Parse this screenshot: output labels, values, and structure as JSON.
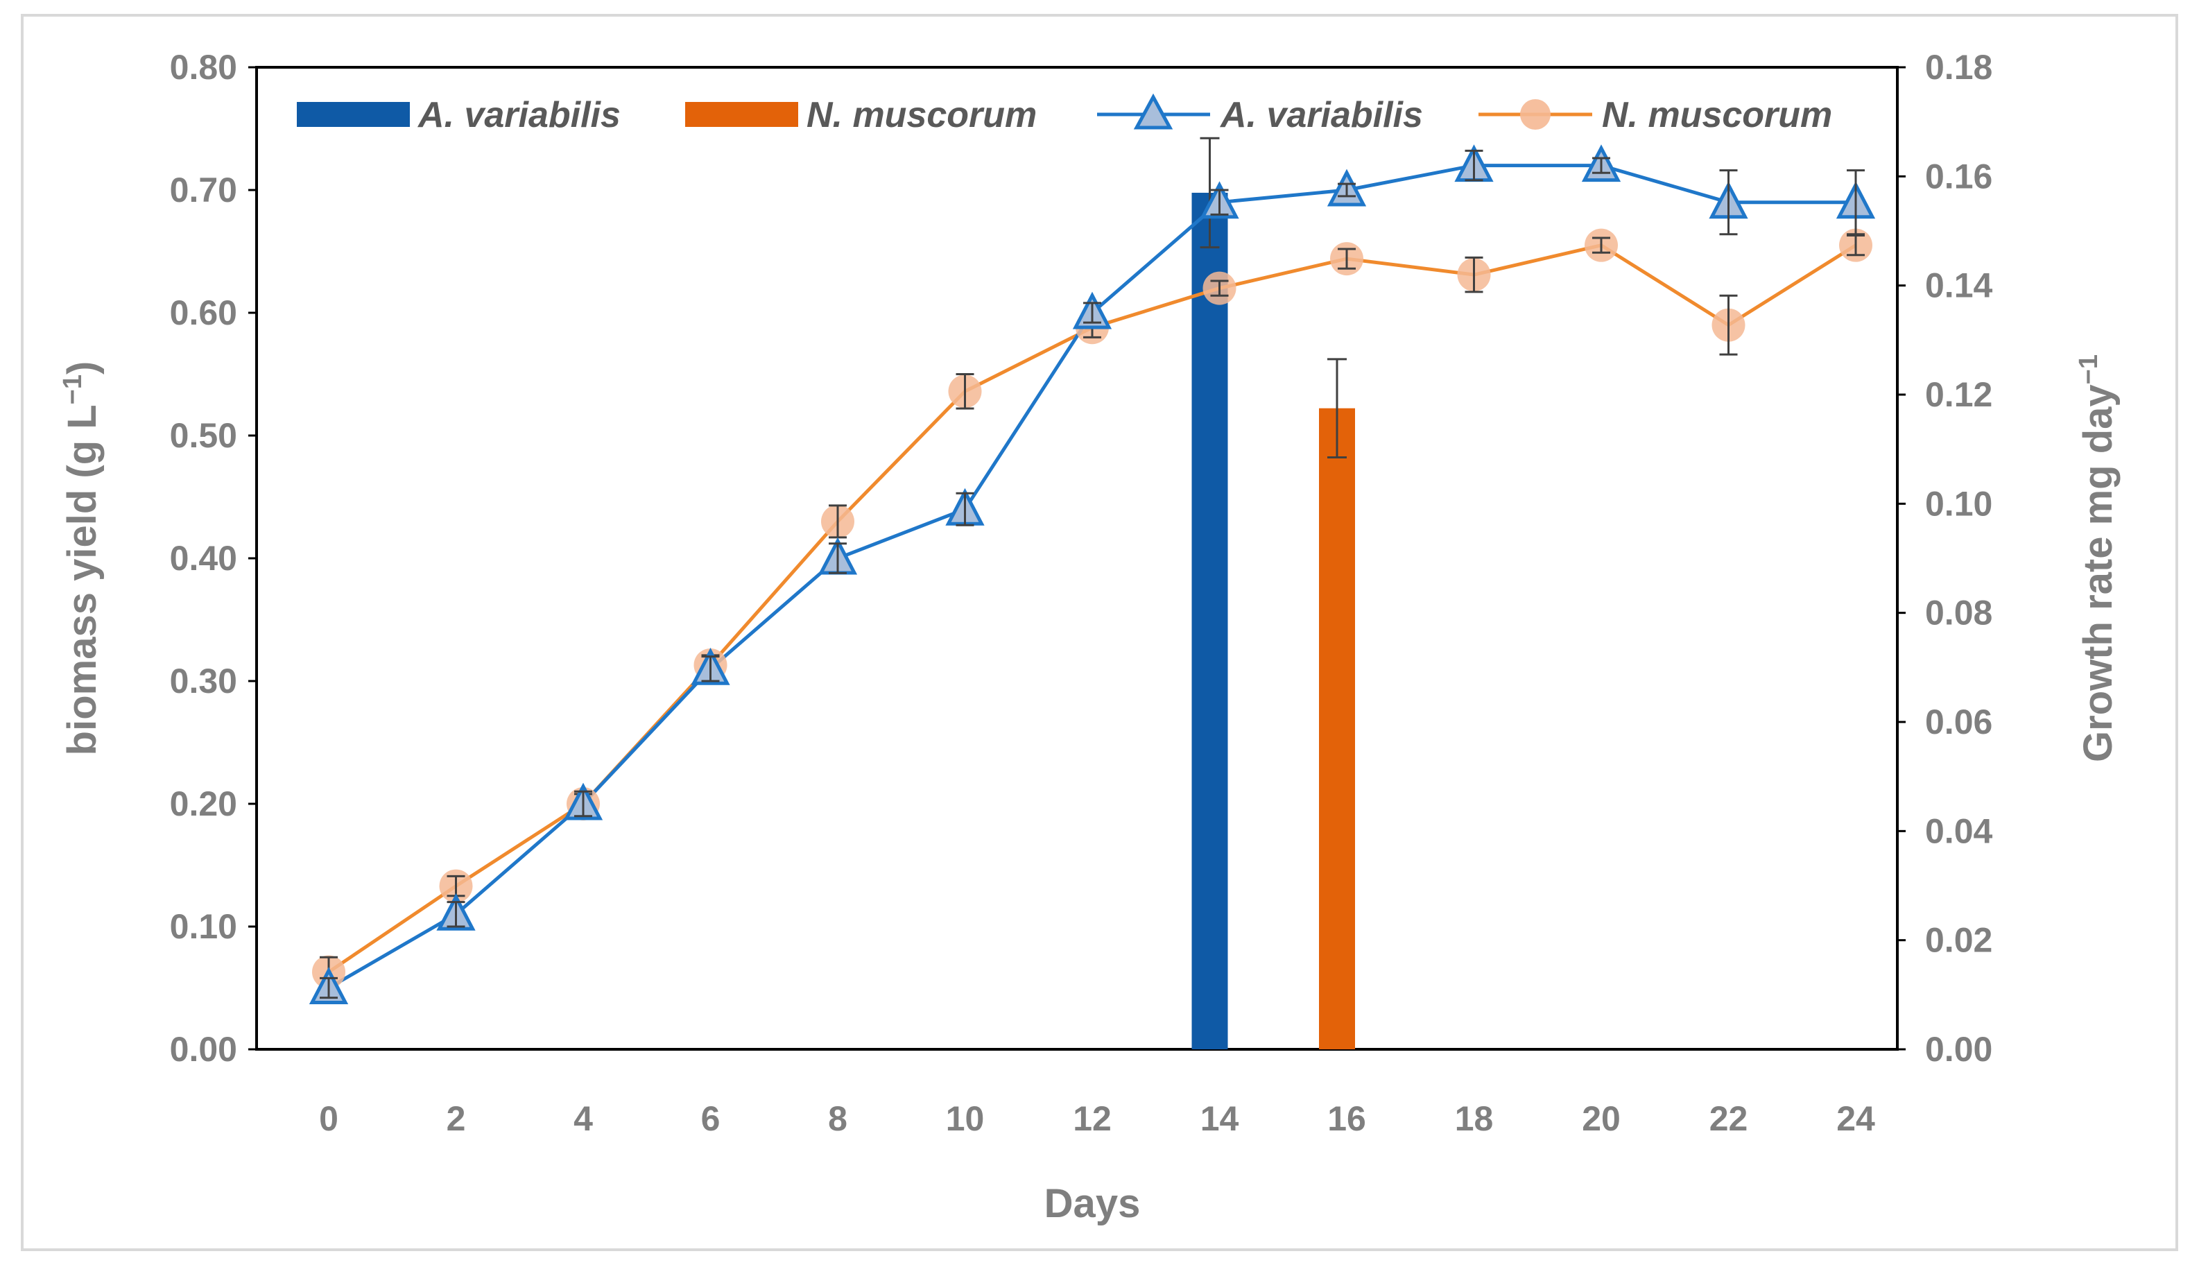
{
  "chart_data": {
    "type": "bar+line",
    "title": "",
    "xlabel": "Days",
    "ylabel": "biomass yield (g L",
    "ylabel_sup": "−1",
    "ylabel_end": ")",
    "y2label": "Growth rate mg day",
    "y2label_sup": "−1",
    "x": [
      0,
      2,
      4,
      6,
      8,
      10,
      12,
      14,
      16,
      18,
      20,
      22,
      24
    ],
    "x_tick_labels": [
      "0",
      "2",
      "4",
      "6",
      "8",
      "10",
      "12",
      "14",
      "16",
      "18",
      "20",
      "22",
      "24"
    ],
    "ylim": [
      0,
      0.8
    ],
    "y_tick_labels": [
      "0.00",
      "0.10",
      "0.20",
      "0.30",
      "0.40",
      "0.50",
      "0.60",
      "0.70",
      "0.80"
    ],
    "y2lim": [
      0,
      0.18
    ],
    "y2_tick_labels": [
      "0.00",
      "0.02",
      "0.04",
      "0.06",
      "0.08",
      "0.10",
      "0.12",
      "0.14",
      "0.16",
      "0.18"
    ],
    "grid": false,
    "legend_position": "top",
    "bars": [
      {
        "name": "A. variabilis",
        "x": 14,
        "value": 0.157,
        "error": 0.01,
        "color": "#0f5aa6",
        "axis": "right"
      },
      {
        "name": "N. muscorum",
        "x": 16,
        "value": 0.1175,
        "error": 0.009,
        "color": "#e36209",
        "axis": "right"
      }
    ],
    "series": [
      {
        "name": "A. variabilis",
        "marker": "triangle",
        "line_color": "#1f77c9",
        "marker_fill": "#a8bedb",
        "axis": "left",
        "values": [
          0.05,
          0.11,
          0.2,
          0.31,
          0.4,
          0.44,
          0.6,
          0.69,
          0.7,
          0.72,
          0.72,
          0.69,
          0.69
        ],
        "errors": [
          0.008,
          0.01,
          0.01,
          0.01,
          0.012,
          0.013,
          0.008,
          0.01,
          0.005,
          0.012,
          0.006,
          0.026,
          0.026
        ]
      },
      {
        "name": "N. muscorum",
        "marker": "circle",
        "line_color": "#f08a2d",
        "marker_fill": "#f5b894",
        "axis": "left",
        "values": [
          0.063,
          0.133,
          0.2,
          0.313,
          0.43,
          0.536,
          0.588,
          0.62,
          0.644,
          0.631,
          0.655,
          0.59,
          0.655
        ],
        "errors": [
          0.012,
          0.008,
          0.008,
          0.008,
          0.013,
          0.014,
          0.008,
          0.006,
          0.008,
          0.014,
          0.006,
          0.024,
          0.008
        ]
      }
    ]
  }
}
